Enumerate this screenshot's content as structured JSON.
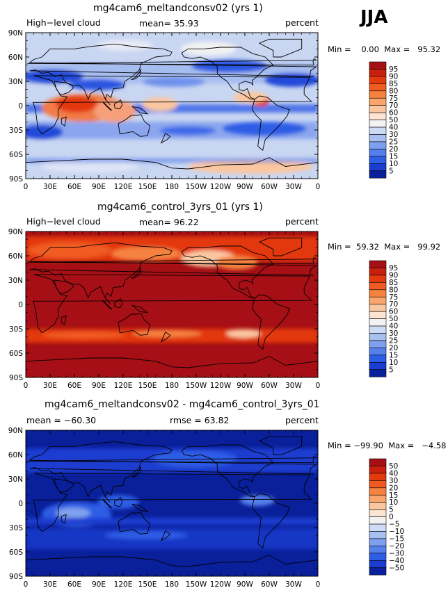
{
  "season": "JJA",
  "panels": [
    {
      "title": "mg4cam6_meltandconsv02 (yrs 1)",
      "left_label": "High−level cloud",
      "center_label": "mean=  35.93",
      "right_label": "percent",
      "minmax": "Min =    0.00  Max =   95.32",
      "palette": "low"
    },
    {
      "title": "mg4cam6_control_3yrs_01 (yrs 1)",
      "left_label": "High−level cloud",
      "center_label": "mean=  96.22",
      "right_label": "percent",
      "minmax": "Min =  59.32  Max =   99.92",
      "palette": "high"
    },
    {
      "title": "mg4cam6_meltandconsv02 - mg4cam6_control_3yrs_01",
      "left_label": "mean = −60.30",
      "center_label": "rmse =  63.82",
      "right_label": "percent",
      "minmax": "Min = −99.90  Max =   −4.58",
      "palette": "diff"
    }
  ],
  "lat_ticks": [
    "90N",
    "60N",
    "30N",
    "0",
    "30S",
    "60S",
    "90S"
  ],
  "lon_ticks": [
    "0",
    "30E",
    "60E",
    "90E",
    "120E",
    "150E",
    "180",
    "150W",
    "120W",
    "90W",
    "60W",
    "30W",
    "0"
  ],
  "colorbar_abs": {
    "levels": [
      "95",
      "90",
      "85",
      "80",
      "75",
      "70",
      "60",
      "50",
      "40",
      "30",
      "25",
      "20",
      "15",
      "10",
      "5"
    ],
    "colors": [
      "#a50f15",
      "#c8200e",
      "#e3390f",
      "#f05b22",
      "#f6823f",
      "#f9a56b",
      "#fbc7a0",
      "#fde4d2",
      "#f2f2f2",
      "#cfdaf5",
      "#a8c0f0",
      "#7fa0ee",
      "#5580ec",
      "#2e5de6",
      "#1a3cd0",
      "#0a1f9a"
    ]
  },
  "colorbar_diff": {
    "levels": [
      "50",
      "40",
      "30",
      "20",
      "15",
      "10",
      "5",
      "0",
      "−5",
      "−10",
      "−15",
      "−20",
      "−30",
      "−40",
      "−50"
    ],
    "colors": [
      "#a50f15",
      "#c8200e",
      "#e3390f",
      "#f05b22",
      "#f6823f",
      "#f9a56b",
      "#fbc7a0",
      "#fde4d2",
      "#f2f2f2",
      "#cfdaf5",
      "#a8c0f0",
      "#7fa0ee",
      "#5580ec",
      "#2e5de6",
      "#1a3cd0",
      "#0a1f9a"
    ]
  }
}
